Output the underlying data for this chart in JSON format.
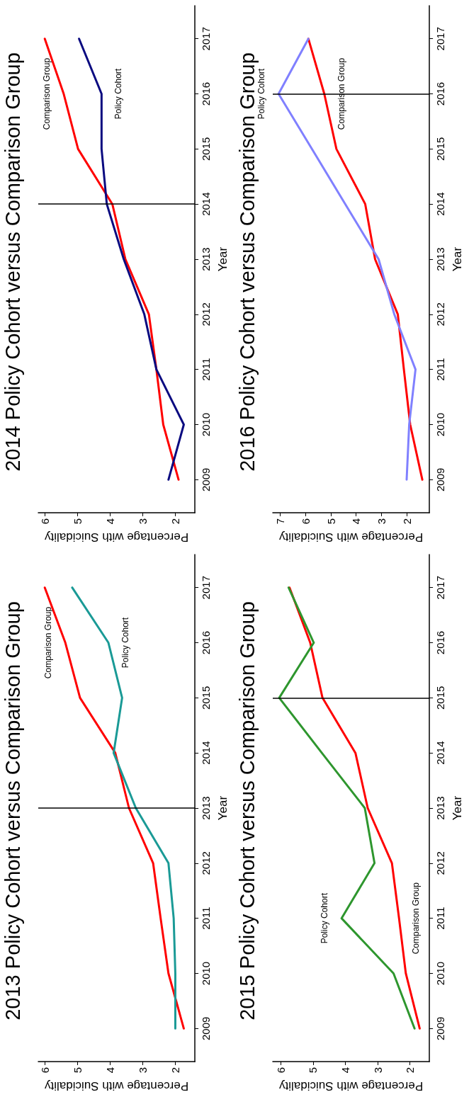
{
  "chart_data": [
    {
      "type": "line",
      "title": "2014 Policy Cohort versus Comparison Group",
      "xlabel": "Percentage with Suicidality",
      "ylabel": "Year",
      "xlim": [
        6.2,
        1.4
      ],
      "xticks": [
        2,
        3,
        4,
        5,
        6
      ],
      "ylim": [
        2008.4,
        2017.6
      ],
      "yticks": [
        2009,
        2010,
        2011,
        2012,
        2013,
        2014,
        2015,
        2016,
        2017
      ],
      "grid": false,
      "marker": "none",
      "series": [
        {
          "name": "Comparison Group",
          "color": "#ff0000",
          "x": [
            1.9,
            2.37,
            2.58,
            2.81,
            3.53,
            3.93,
            4.98,
            5.42,
            6.0
          ],
          "values": [
            2009,
            2010,
            2011,
            2012,
            2013,
            2014,
            2015,
            2016,
            2017
          ]
        },
        {
          "name": "Policy Cohort",
          "color": "#0a0a80",
          "x": [
            2.21,
            1.74,
            2.58,
            2.95,
            3.58,
            4.1,
            4.26,
            4.26,
            4.95
          ],
          "values": [
            2009,
            2010,
            2011,
            2012,
            2013,
            2014,
            2015,
            2016,
            2017
          ]
        }
      ],
      "ref_lines": [
        {
          "axis": "y",
          "value": 2014,
          "color": "#000000"
        }
      ]
    },
    {
      "type": "line",
      "title": "2016 Policy Cohort versus Comparison Group",
      "xlabel": "Percentage with Suicidality",
      "ylabel": "Year",
      "xlim": [
        7.3,
        1.1
      ],
      "xticks": [
        2,
        3,
        4,
        5,
        6,
        7
      ],
      "ylim": [
        2008.4,
        2017.6
      ],
      "yticks": [
        2009,
        2010,
        2011,
        2012,
        2013,
        2014,
        2015,
        2016,
        2017
      ],
      "grid": false,
      "marker": "none",
      "series": [
        {
          "name": "Comparison Group",
          "color": "#ff0000",
          "x": [
            1.38,
            1.86,
            2.11,
            2.35,
            3.25,
            3.64,
            4.78,
            5.26,
            5.89
          ],
          "values": [
            2009,
            2010,
            2011,
            2012,
            2013,
            2014,
            2015,
            2016,
            2017
          ]
        },
        {
          "name": "Policy Cohort",
          "color": "#8080ff",
          "x": [
            2.0,
            1.9,
            1.65,
            2.49,
            3.11,
            4.43,
            5.75,
            7.07,
            5.89
          ],
          "values": [
            2009,
            2010,
            2011,
            2012,
            2013,
            2014,
            2015,
            2016,
            2017
          ]
        }
      ],
      "ref_lines": [
        {
          "axis": "y",
          "value": 2016,
          "color": "#000000"
        }
      ]
    },
    {
      "type": "line",
      "title": "2013 Policy Cohort versus Comparison Group",
      "xlabel": "Percentage with Suicidality",
      "ylabel": "Year",
      "xlim": [
        6.2,
        1.4
      ],
      "xticks": [
        2,
        3,
        4,
        5,
        6
      ],
      "ylim": [
        2008.4,
        2017.6
      ],
      "yticks": [
        2009,
        2010,
        2011,
        2012,
        2013,
        2014,
        2015,
        2016,
        2017
      ],
      "grid": false,
      "marker": "none",
      "series": [
        {
          "name": "Comparison Group",
          "color": "#ff0000",
          "x": [
            1.74,
            2.21,
            2.45,
            2.68,
            3.42,
            3.84,
            4.92,
            5.37,
            6.0
          ],
          "values": [
            2009,
            2010,
            2011,
            2012,
            2013,
            2014,
            2015,
            2016,
            2017
          ]
        },
        {
          "name": "Policy Cohort",
          "color": "#1a9a96",
          "x": [
            2.0,
            2.0,
            2.05,
            2.21,
            3.21,
            3.89,
            3.63,
            4.05,
            5.16
          ],
          "values": [
            2009,
            2010,
            2011,
            2012,
            2013,
            2014,
            2015,
            2016,
            2017
          ]
        }
      ],
      "ref_lines": [
        {
          "axis": "y",
          "value": 2013,
          "color": "#000000"
        }
      ]
    },
    {
      "type": "line",
      "title": "2015 Policy Cohort versus Comparison Group",
      "xlabel": "Percentage with Suicidality",
      "ylabel": "Year",
      "xlim": [
        6.25,
        1.4
      ],
      "xticks": [
        2,
        3,
        4,
        5,
        6
      ],
      "ylim": [
        2008.4,
        2017.6
      ],
      "yticks": [
        2009,
        2010,
        2011,
        2012,
        2013,
        2014,
        2015,
        2016,
        2017
      ],
      "grid": false,
      "marker": "none",
      "series": [
        {
          "name": "Comparison Group",
          "color": "#ff0000",
          "x": [
            1.7,
            2.13,
            2.34,
            2.56,
            3.31,
            3.69,
            4.71,
            5.09,
            5.73
          ],
          "values": [
            2009,
            2010,
            2011,
            2012,
            2013,
            2014,
            2015,
            2016,
            2017
          ]
        },
        {
          "name": "Policy Cohort",
          "color": "#2e962e",
          "x": [
            1.86,
            2.51,
            4.12,
            3.1,
            3.4,
            4.73,
            6.05,
            4.98,
            5.76
          ],
          "values": [
            2009,
            2010,
            2011,
            2012,
            2013,
            2014,
            2015,
            2016,
            2017
          ]
        }
      ],
      "ref_lines": [
        {
          "axis": "y",
          "value": 2015,
          "color": "#000000"
        }
      ]
    }
  ]
}
